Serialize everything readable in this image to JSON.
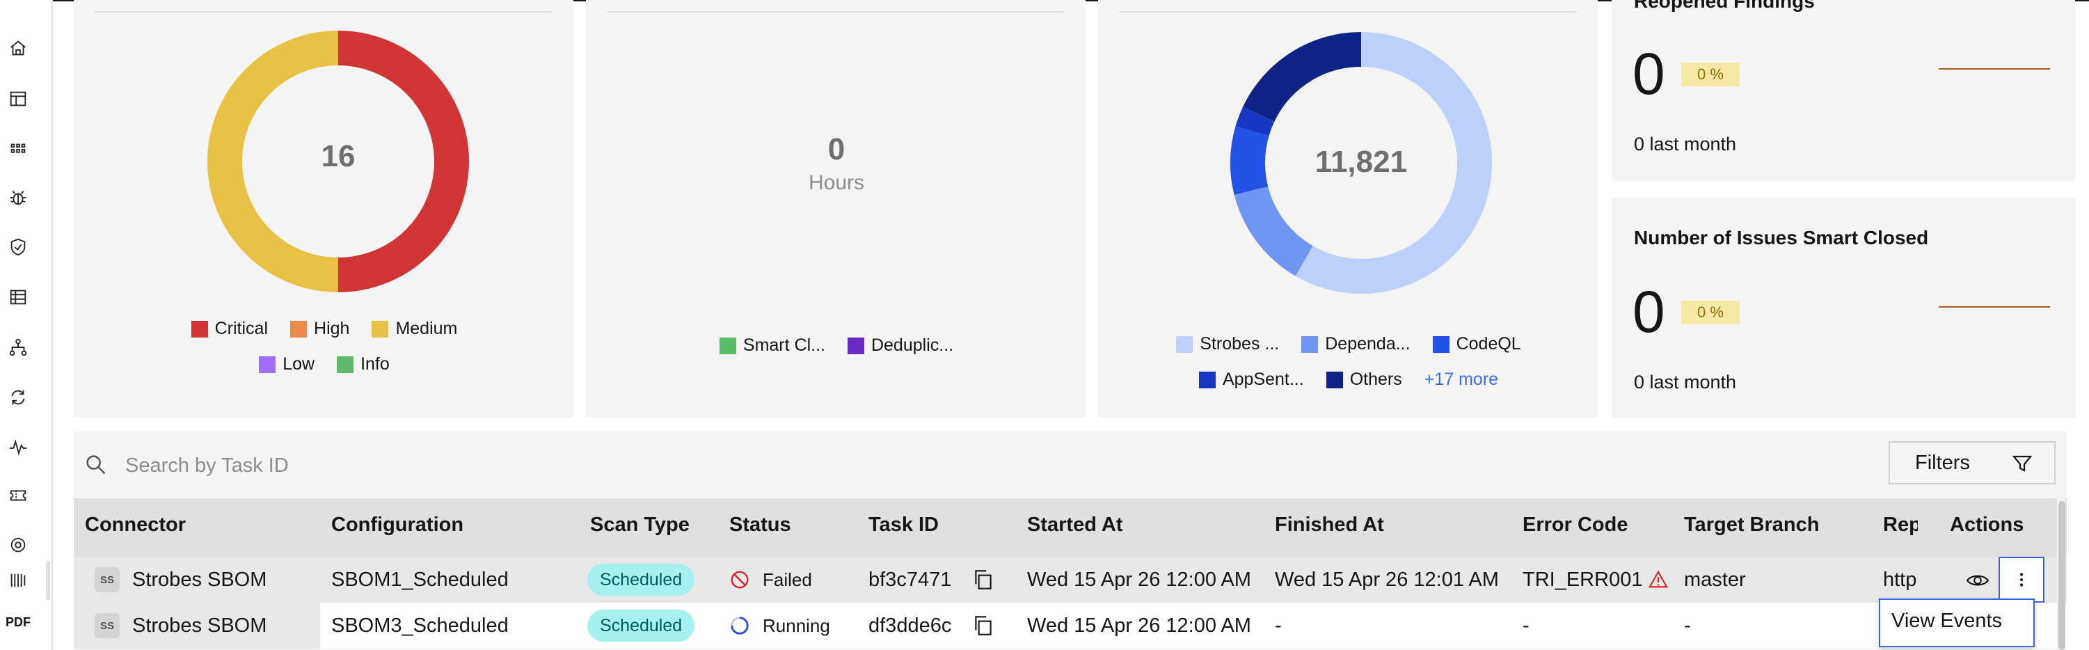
{
  "rail": {
    "icons": [
      "home-icon",
      "dashboard-icon",
      "apps-grid-icon",
      "bug-icon",
      "shield-check-icon",
      "table-icon",
      "network-tree-icon",
      "sync-settings-icon",
      "activity-pulse-icon",
      "ticket-icon",
      "scan-target-icon",
      "report-columns-icon"
    ],
    "pdf_label": "PDF"
  },
  "severity_chart": {
    "chart_data": {
      "type": "pie",
      "total_label": "16",
      "categories": [
        "Critical",
        "High",
        "Medium",
        "Low",
        "Info"
      ],
      "values": [
        8,
        0,
        8,
        0,
        0
      ],
      "colors": [
        "#d03434",
        "#eb8a4a",
        "#e9c245",
        "#a06ef2",
        "#5dba6b"
      ]
    }
  },
  "hours_card": {
    "value": "0",
    "unit": "Hours",
    "legend": [
      {
        "label": "Smart Cl...",
        "color": "#5dba6b"
      },
      {
        "label": "Deduplic...",
        "color": "#6a2bc4"
      }
    ]
  },
  "sources_chart": {
    "chart_data": {
      "type": "pie",
      "total_label": "11,821",
      "categories": [
        "Strobes ...",
        "Dependa...",
        "CodeQL",
        "AppSent...",
        "Others"
      ],
      "values": [
        6900,
        1500,
        1000,
        300,
        2121
      ],
      "colors": [
        "#bcd0fb",
        "#6f96f3",
        "#2451e6",
        "#1836c4",
        "#0e2385"
      ],
      "more_label": "+17 more"
    }
  },
  "reopened_card": {
    "title": "Reopened Findings",
    "value": "0",
    "badge": "0 %",
    "sub": "0 last month"
  },
  "smart_closed_card": {
    "title": "Number of Issues Smart Closed",
    "value": "0",
    "badge": "0 %",
    "sub": "0 last month"
  },
  "table": {
    "search_placeholder": "Search by Task ID",
    "filters_label": "Filters",
    "columns": [
      "Connector",
      "Configuration",
      "Scan Type",
      "Status",
      "Task ID",
      "Started At",
      "Finished At",
      "Error Code",
      "Target Branch",
      "Rep",
      "Actions"
    ],
    "rows": [
      {
        "avatar": "SS",
        "connector": "Strobes SBOM",
        "configuration": "SBOM1_Scheduled",
        "scan_type": "Scheduled",
        "status": "Failed",
        "task_id": "bf3c7471",
        "started_at": "Wed 15 Apr 26 12:00 AM",
        "finished_at": "Wed 15 Apr 26 12:01 AM",
        "error_code": "TRI_ERR001",
        "target_branch": "master",
        "rep": "http"
      },
      {
        "avatar": "SS",
        "connector": "Strobes SBOM",
        "configuration": "SBOM3_Scheduled",
        "scan_type": "Scheduled",
        "status": "Running",
        "task_id": "df3dde6c",
        "started_at": "Wed 15 Apr 26 12:00 AM",
        "finished_at": "-",
        "error_code": "-",
        "target_branch": "-",
        "rep": ""
      }
    ],
    "menu_item": "View Events"
  }
}
